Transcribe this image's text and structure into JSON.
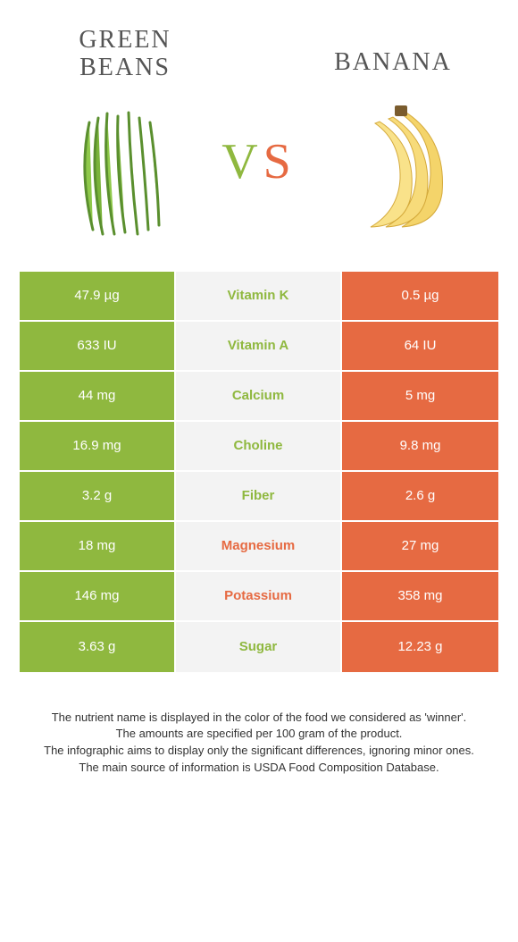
{
  "colors": {
    "left": "#8fb83f",
    "right": "#e66a42",
    "mid_bg": "#f3f3f3",
    "page_bg": "#ffffff",
    "title_text": "#555555",
    "footer_text": "#333333"
  },
  "typography": {
    "title_fontsize": 28,
    "vs_fontsize": 56,
    "cell_fontsize": 15,
    "footer_fontsize": 13
  },
  "header": {
    "left_title": "GREEN BEANS",
    "right_title": "BANANA",
    "vs_v": "V",
    "vs_s": "S"
  },
  "rows": [
    {
      "left": "47.9 µg",
      "label": "Vitamin K",
      "right": "0.5 µg",
      "winner": "left"
    },
    {
      "left": "633 IU",
      "label": "Vitamin A",
      "right": "64 IU",
      "winner": "left"
    },
    {
      "left": "44 mg",
      "label": "Calcium",
      "right": "5 mg",
      "winner": "left"
    },
    {
      "left": "16.9 mg",
      "label": "Choline",
      "right": "9.8 mg",
      "winner": "left"
    },
    {
      "left": "3.2 g",
      "label": "Fiber",
      "right": "2.6 g",
      "winner": "left"
    },
    {
      "left": "18 mg",
      "label": "Magnesium",
      "right": "27 mg",
      "winner": "right"
    },
    {
      "left": "146 mg",
      "label": "Potassium",
      "right": "358 mg",
      "winner": "right"
    },
    {
      "left": "3.63 g",
      "label": "Sugar",
      "right": "12.23 g",
      "winner": "left"
    }
  ],
  "footer": {
    "line1": "The nutrient name is displayed in the color of the food we considered as 'winner'.",
    "line2": "The amounts are specified per 100 gram of the product.",
    "line3": "The infographic aims to display only the significant differences, ignoring minor ones.",
    "line4": "The main source of information is USDA Food Composition Database."
  }
}
